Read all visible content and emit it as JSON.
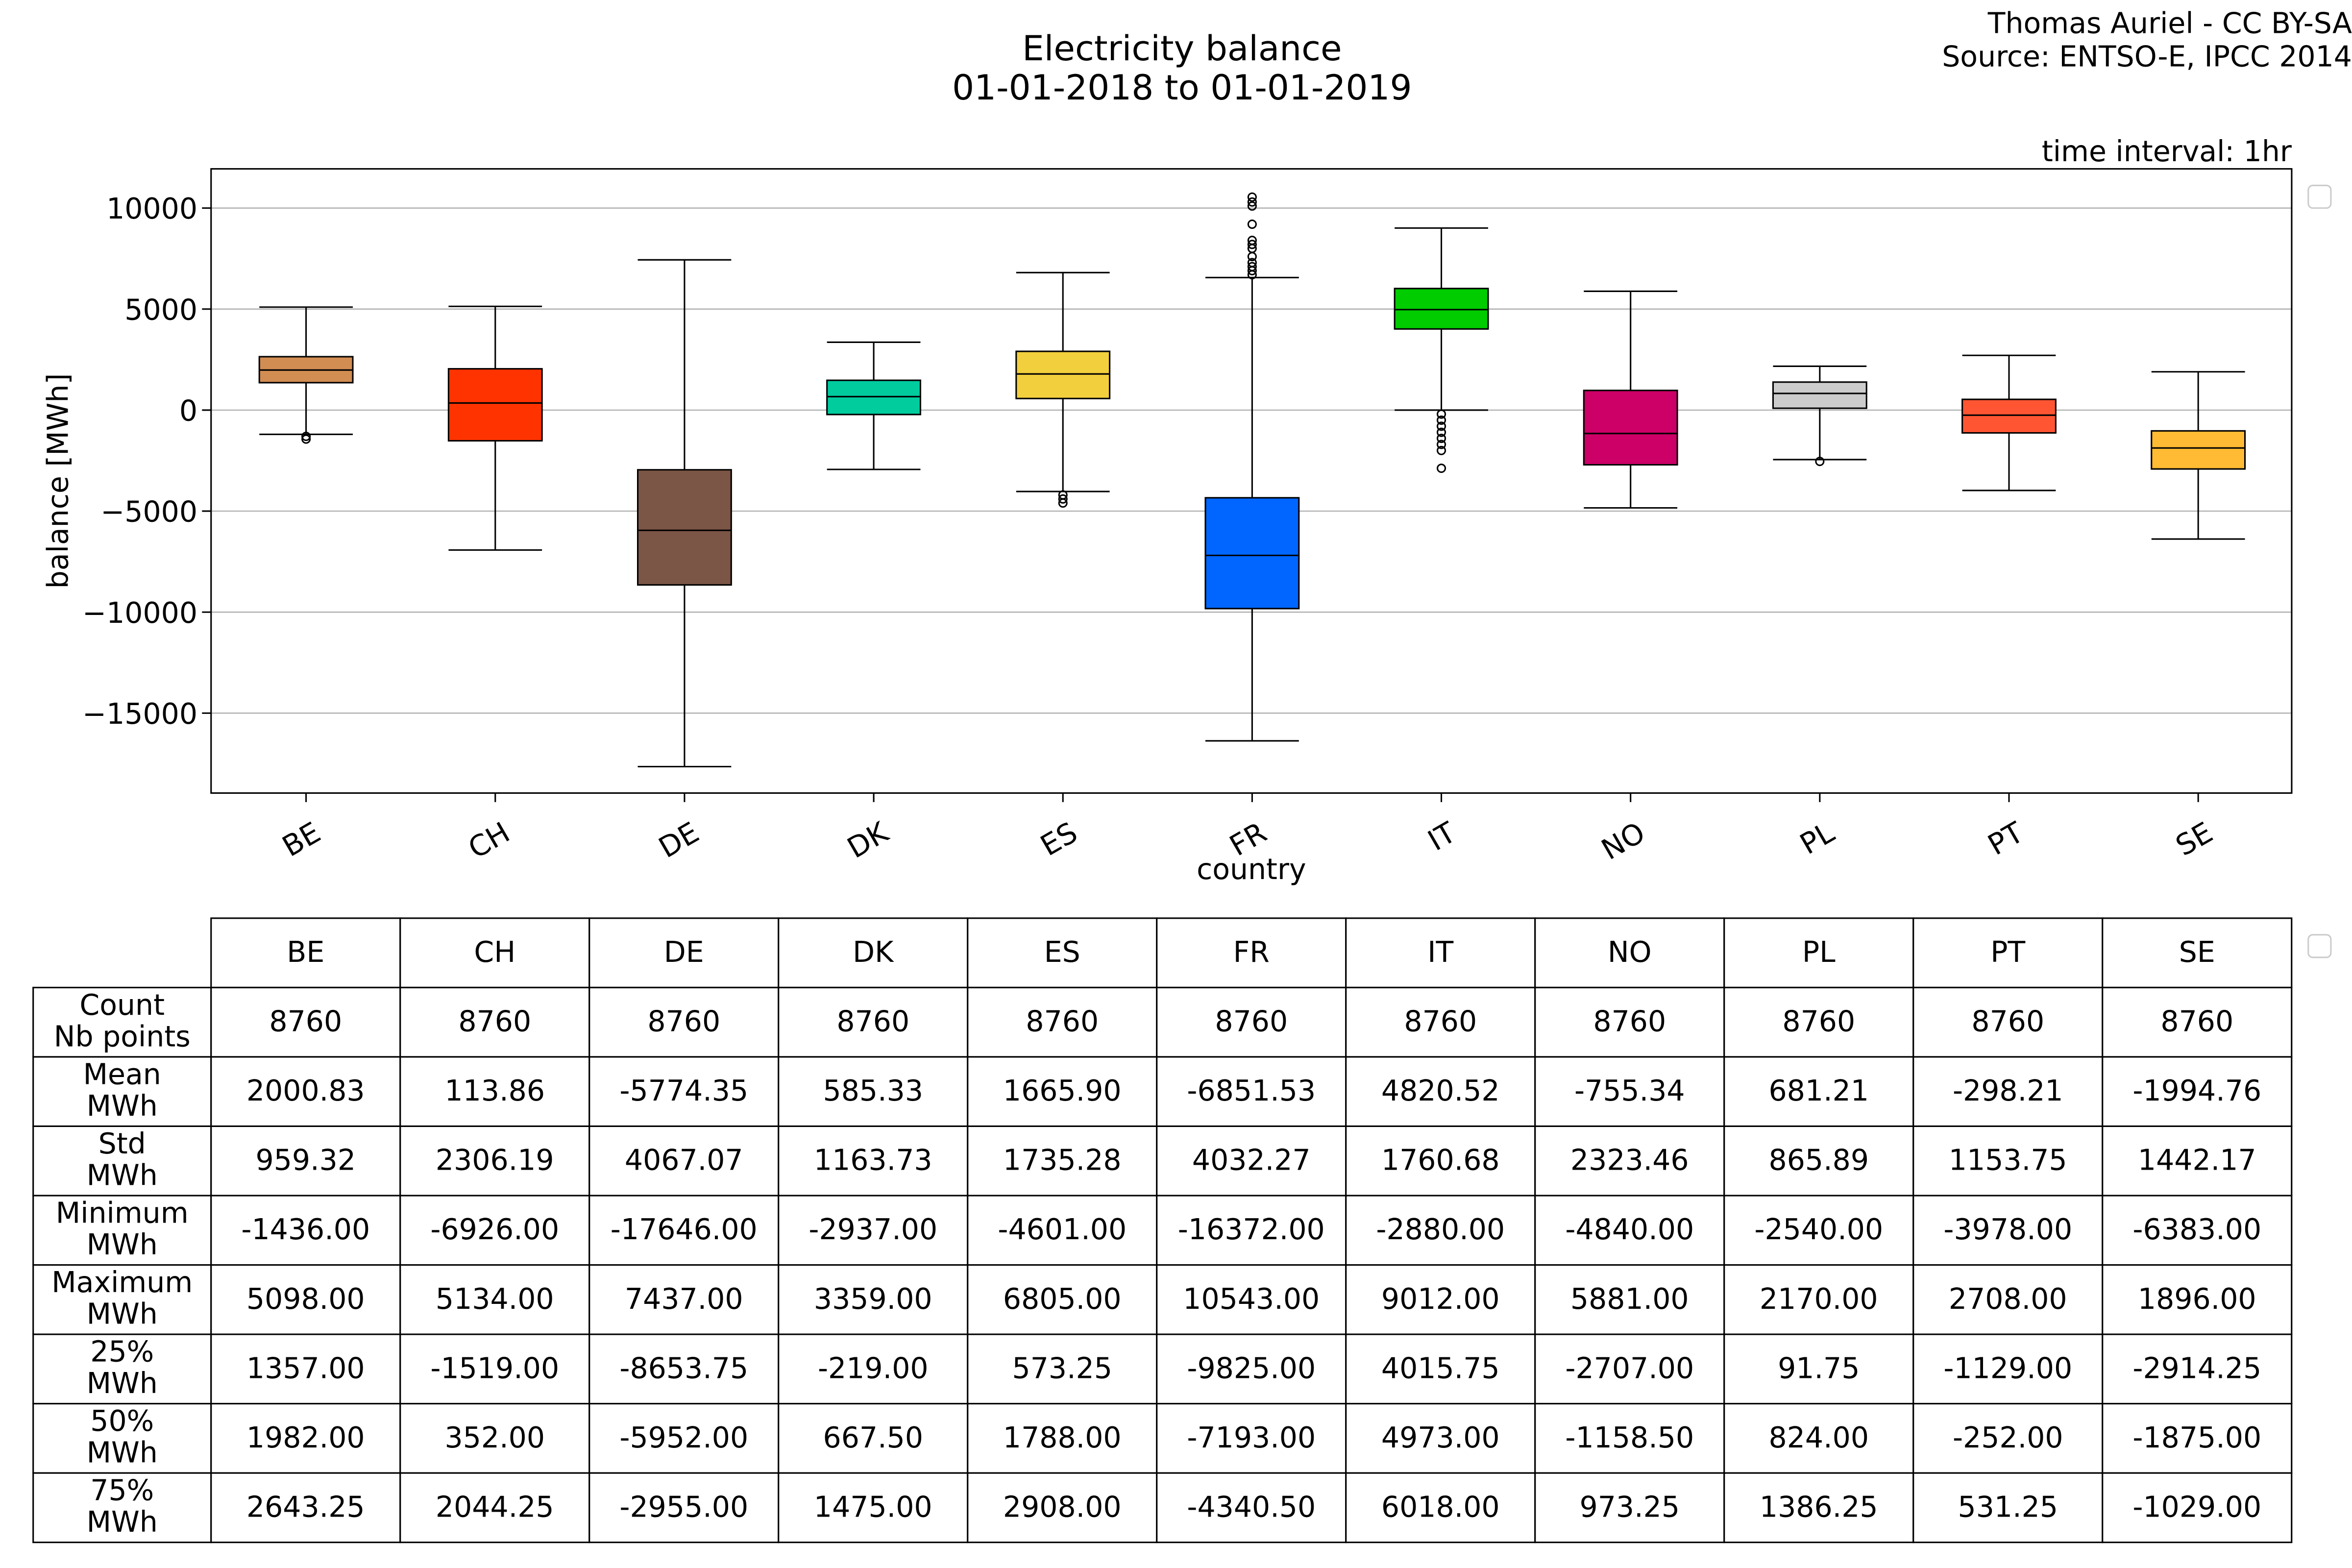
{
  "header": {
    "title_line1": "Electricity balance",
    "title_line2": "01-01-2018 to 01-01-2019",
    "credit_line1": "Thomas Auriel - CC BY-SA",
    "credit_line2": "Source: ENTSO-E, IPCC 2014",
    "interval": "time interval: 1hr"
  },
  "chart_data": {
    "type": "box",
    "title": "Electricity balance 01-01-2018 to 01-01-2019",
    "xlabel": "country",
    "ylabel": "balance [MWh]",
    "ylim": [
      -19000,
      12000
    ],
    "yticks": [
      10000,
      5000,
      0,
      -5000,
      -10000,
      -15000
    ],
    "ytick_labels": [
      "10000",
      "5000",
      "0",
      "−5000",
      "−10000",
      "−15000"
    ],
    "grid": "horizontal",
    "categories": [
      "BE",
      "CH",
      "DE",
      "DK",
      "ES",
      "FR",
      "IT",
      "NO",
      "PL",
      "PT",
      "SE"
    ],
    "boxes": [
      {
        "name": "BE",
        "color": "#d28d52",
        "q1": 1357,
        "median": 1982,
        "q3": 2643.25,
        "whisker_low": -1200,
        "whisker_high": 5098,
        "outliers": [
          -1300,
          -1436
        ]
      },
      {
        "name": "CH",
        "color": "#ff3300",
        "q1": -1519,
        "median": 352,
        "q3": 2044.25,
        "whisker_low": -6926,
        "whisker_high": 5134,
        "outliers": []
      },
      {
        "name": "DE",
        "color": "#7b5545",
        "q1": -8653.75,
        "median": -5952,
        "q3": -2955,
        "whisker_low": -17646,
        "whisker_high": 7437,
        "outliers": []
      },
      {
        "name": "DK",
        "color": "#00cc9e",
        "q1": -219,
        "median": 667.5,
        "q3": 1475,
        "whisker_low": -2937,
        "whisker_high": 3359,
        "outliers": []
      },
      {
        "name": "ES",
        "color": "#f2cf3d",
        "q1": 573.25,
        "median": 1788,
        "q3": 2908,
        "whisker_low": -4030,
        "whisker_high": 6805,
        "outliers": [
          -4200,
          -4400,
          -4601
        ]
      },
      {
        "name": "FR",
        "color": "#0066ff",
        "q1": -9825,
        "median": -7193,
        "q3": -4340.5,
        "whisker_low": -16372,
        "whisker_high": 6560,
        "outliers": [
          6700,
          6900,
          7100,
          7300,
          7600,
          8000,
          8200,
          8400,
          9200,
          10100,
          10300,
          10543
        ]
      },
      {
        "name": "IT",
        "color": "#00cc00",
        "q1": 4015.75,
        "median": 4973,
        "q3": 6018,
        "whisker_low": 0,
        "whisker_high": 9012,
        "outliers": [
          -200,
          -500,
          -800,
          -1100,
          -1400,
          -1700,
          -2000,
          -2880
        ]
      },
      {
        "name": "NO",
        "color": "#cc0066",
        "q1": -2707,
        "median": -1158.5,
        "q3": 973.25,
        "whisker_low": -4840,
        "whisker_high": 5881,
        "outliers": []
      },
      {
        "name": "PL",
        "color": "#cccccc",
        "q1": 91.75,
        "median": 824,
        "q3": 1386.25,
        "whisker_low": -2450,
        "whisker_high": 2170,
        "outliers": [
          -2540
        ]
      },
      {
        "name": "PT",
        "color": "#ff5533",
        "q1": -1129,
        "median": -252,
        "q3": 531.25,
        "whisker_low": -3978,
        "whisker_high": 2708,
        "outliers": []
      },
      {
        "name": "SE",
        "color": "#ffbb33",
        "q1": -2914.25,
        "median": -1875,
        "q3": -1029,
        "whisker_low": -6383,
        "whisker_high": 1896,
        "outliers": []
      }
    ]
  },
  "table": {
    "columns": [
      "BE",
      "CH",
      "DE",
      "DK",
      "ES",
      "FR",
      "IT",
      "NO",
      "PL",
      "PT",
      "SE"
    ],
    "rows": [
      {
        "label": [
          "Count",
          "Nb points"
        ],
        "values": [
          "8760",
          "8760",
          "8760",
          "8760",
          "8760",
          "8760",
          "8760",
          "8760",
          "8760",
          "8760",
          "8760"
        ]
      },
      {
        "label": [
          "Mean",
          "MWh"
        ],
        "values": [
          "2000.83",
          "113.86",
          "-5774.35",
          "585.33",
          "1665.90",
          "-6851.53",
          "4820.52",
          "-755.34",
          "681.21",
          "-298.21",
          "-1994.76"
        ]
      },
      {
        "label": [
          "Std",
          "MWh"
        ],
        "values": [
          "959.32",
          "2306.19",
          "4067.07",
          "1163.73",
          "1735.28",
          "4032.27",
          "1760.68",
          "2323.46",
          "865.89",
          "1153.75",
          "1442.17"
        ]
      },
      {
        "label": [
          "Minimum",
          "MWh"
        ],
        "values": [
          "-1436.00",
          "-6926.00",
          "-17646.00",
          "-2937.00",
          "-4601.00",
          "-16372.00",
          "-2880.00",
          "-4840.00",
          "-2540.00",
          "-3978.00",
          "-6383.00"
        ]
      },
      {
        "label": [
          "Maximum",
          "MWh"
        ],
        "values": [
          "5098.00",
          "5134.00",
          "7437.00",
          "3359.00",
          "6805.00",
          "10543.00",
          "9012.00",
          "5881.00",
          "2170.00",
          "2708.00",
          "1896.00"
        ]
      },
      {
        "label": [
          "25%",
          "MWh"
        ],
        "values": [
          "1357.00",
          "-1519.00",
          "-8653.75",
          "-219.00",
          "573.25",
          "-9825.00",
          "4015.75",
          "-2707.00",
          "91.75",
          "-1129.00",
          "-2914.25"
        ]
      },
      {
        "label": [
          "50%",
          "MWh"
        ],
        "values": [
          "1982.00",
          "352.00",
          "-5952.00",
          "667.50",
          "1788.00",
          "-7193.00",
          "4973.00",
          "-1158.50",
          "824.00",
          "-252.00",
          "-1875.00"
        ]
      },
      {
        "label": [
          "75%",
          "MWh"
        ],
        "values": [
          "2643.25",
          "2044.25",
          "-2955.00",
          "1475.00",
          "2908.00",
          "-4340.50",
          "6018.00",
          "973.25",
          "1386.25",
          "531.25",
          "-1029.00"
        ]
      }
    ]
  }
}
